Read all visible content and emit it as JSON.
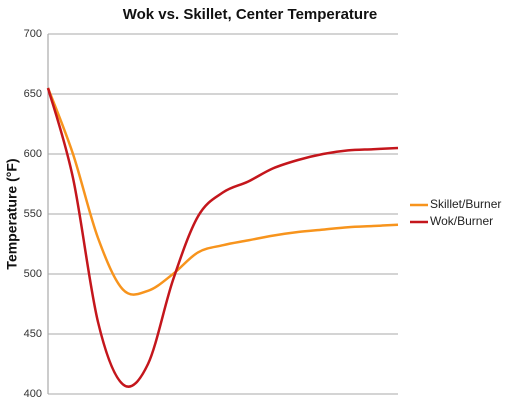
{
  "chart_data": {
    "type": "line",
    "title": "Wok vs. Skillet, Center Temperature",
    "y_label": "Temperature (°F)",
    "categories": [
      null,
      null,
      null,
      null,
      null,
      null,
      null,
      null,
      null,
      null,
      null,
      null,
      null,
      null,
      null
    ],
    "series": [
      {
        "name": "Skillet/Burner",
        "color": "#f7941d",
        "values": [
          655,
          600,
          530,
          487,
          486,
          500,
          518,
          524,
          528,
          532,
          535,
          537,
          539,
          540,
          541
        ]
      },
      {
        "name": "Wok/Burner",
        "color": "#c4161c",
        "values": [
          655,
          580,
          460,
          408,
          425,
          495,
          548,
          568,
          577,
          588,
          595,
          600,
          603,
          604,
          605
        ]
      }
    ],
    "ylim": [
      400,
      700
    ],
    "yticks": [
      400,
      450,
      500,
      550,
      600,
      650,
      700
    ],
    "grid": true,
    "legend": "right"
  }
}
